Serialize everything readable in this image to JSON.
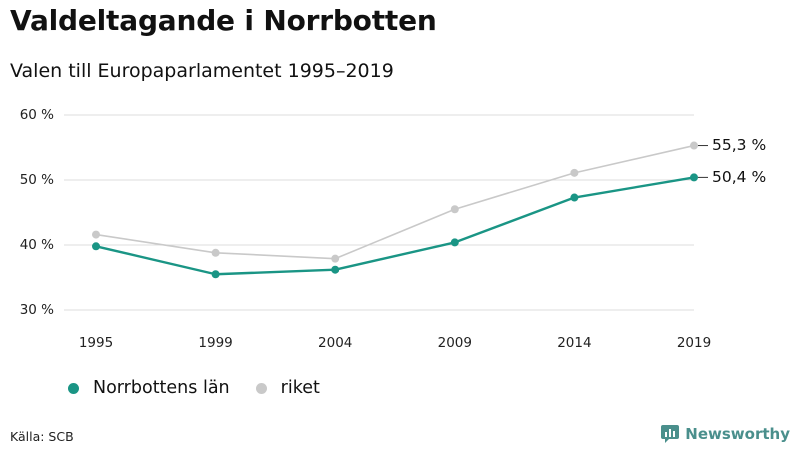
{
  "header": {
    "title": "Valdeltagande i Norrbotten",
    "subtitle": "Valen till Europaparlamentet 1995–2019"
  },
  "footer": {
    "source": "Källa: SCB",
    "brand": "Newsworthy"
  },
  "colors": {
    "norrbotten": "#1a9585",
    "riket": "#c9c9c9",
    "grid": "#dddddd",
    "brand": "#4a8f8c"
  },
  "chart_data": {
    "type": "line",
    "title": "Valdeltagande i Norrbotten",
    "subtitle": "Valen till Europaparlamentet 1995–2019",
    "x": [
      "1995",
      "1999",
      "2004",
      "2009",
      "2014",
      "2019"
    ],
    "series": [
      {
        "name": "Norrbottens län",
        "values": [
          39.8,
          35.5,
          36.2,
          40.4,
          47.3,
          50.4
        ],
        "end_label": "50,4 %"
      },
      {
        "name": "riket",
        "values": [
          41.6,
          38.8,
          37.9,
          45.5,
          51.1,
          55.3
        ],
        "end_label": "55,3 %"
      }
    ],
    "yticks": [
      "30 %",
      "40 %",
      "50 %",
      "60 %"
    ],
    "ylim": [
      30,
      60
    ],
    "grid": true,
    "legend_position": "bottom-left"
  }
}
